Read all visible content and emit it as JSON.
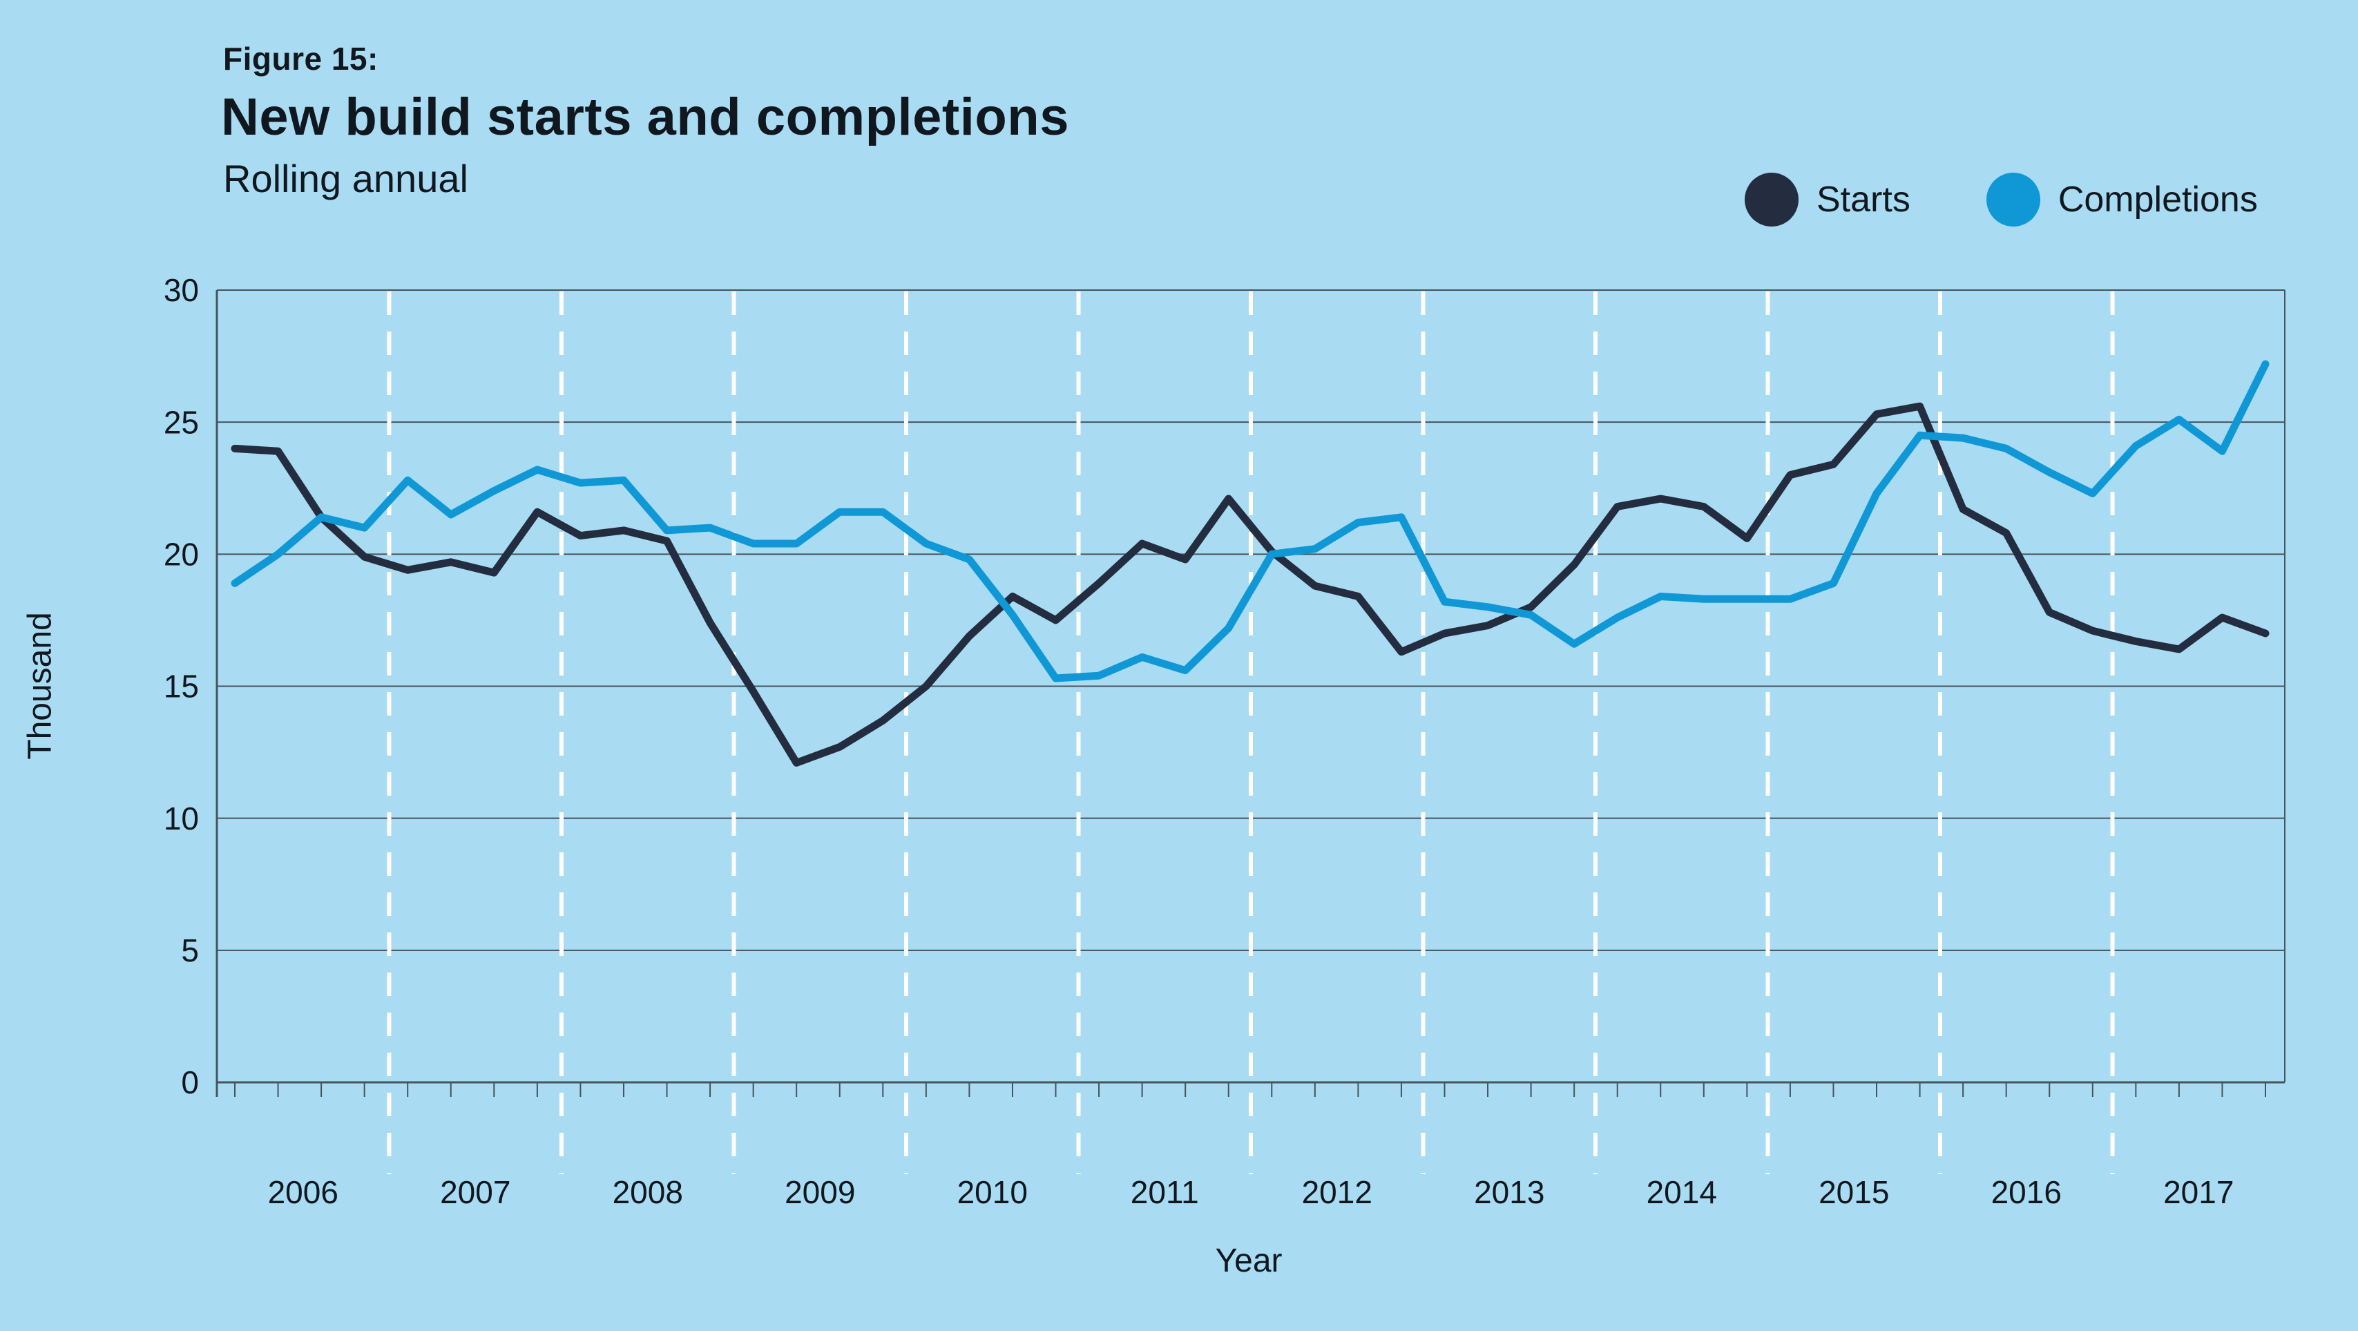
{
  "header": {
    "figure_label": "Figure 15:",
    "title": "New build starts and completions",
    "subtitle": "Rolling annual"
  },
  "legend": [
    {
      "label": "Starts",
      "color": "#232d3f"
    },
    {
      "label": "Completions",
      "color": "#0f98d5"
    }
  ],
  "axes": {
    "y_label": "Thousand",
    "x_label": "Year",
    "y_ticks": [
      0,
      5,
      10,
      15,
      20,
      25,
      30
    ],
    "x_ticks": [
      "2006",
      "2007",
      "2008",
      "2009",
      "2010",
      "2011",
      "2012",
      "2013",
      "2014",
      "2015",
      "2016",
      "2017"
    ]
  },
  "colors": {
    "background": "#a9dcf2",
    "starts": "#232d3f",
    "completions": "#0f98d5",
    "grid": "#46535b",
    "year_separator": "#ffffff",
    "text": "#11171e"
  },
  "chart_data": {
    "type": "line",
    "title": "New build starts and completions",
    "subtitle": "Rolling annual",
    "xlabel": "Year",
    "ylabel": "Thousand",
    "ylim": [
      0,
      30
    ],
    "y_tick_step": 5,
    "grid": "horizontal solid, vertical dashed white at year boundaries",
    "legend_position": "top-right",
    "frequency": "quarterly",
    "x_start": "2006 Q1",
    "x_end": "2017 Q4",
    "categories_years": [
      2006,
      2007,
      2008,
      2009,
      2010,
      2011,
      2012,
      2013,
      2014,
      2015,
      2016,
      2017
    ],
    "series": [
      {
        "name": "Starts",
        "color": "#232d3f",
        "values": [
          24.0,
          23.9,
          21.4,
          19.9,
          19.4,
          19.7,
          19.3,
          21.6,
          20.7,
          20.9,
          20.5,
          17.4,
          14.8,
          12.1,
          12.7,
          13.7,
          15.0,
          16.9,
          18.4,
          17.5,
          18.9,
          20.4,
          19.8,
          22.1,
          20.1,
          18.8,
          18.4,
          16.3,
          17.0,
          17.3,
          18.0,
          19.6,
          21.8,
          22.1,
          21.8,
          20.6,
          23.0,
          23.4,
          25.3,
          25.6,
          21.7,
          20.8,
          17.8,
          17.1,
          16.7,
          16.4,
          17.6,
          17.0
        ]
      },
      {
        "name": "Completions",
        "color": "#0f98d5",
        "values": [
          18.9,
          20.0,
          21.4,
          21.0,
          22.8,
          21.5,
          22.4,
          23.2,
          22.7,
          22.8,
          20.9,
          21.0,
          20.4,
          20.4,
          21.6,
          21.6,
          20.4,
          19.8,
          17.7,
          15.3,
          15.4,
          16.1,
          15.6,
          17.2,
          20.0,
          20.2,
          21.2,
          21.4,
          18.2,
          18.0,
          17.7,
          16.6,
          17.6,
          18.4,
          18.3,
          18.3,
          18.3,
          18.9,
          22.3,
          24.5,
          24.4,
          24.0,
          23.1,
          22.3,
          24.1,
          25.1,
          23.9,
          27.2
        ]
      }
    ]
  }
}
